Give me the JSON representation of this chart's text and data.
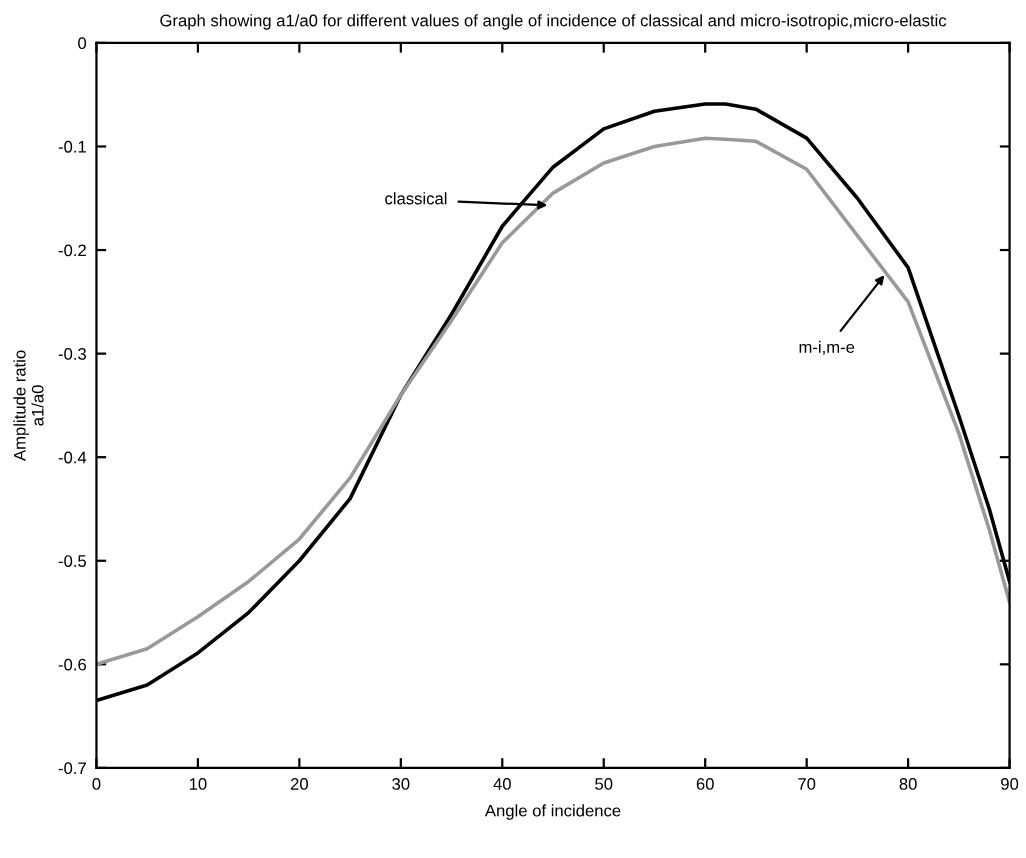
{
  "chart_data": {
    "type": "line",
    "title": "Graph showing a1/a0 for different values of angle of incidence of classical and micro-isotropic,micro-elastic",
    "xlabel": "Angle of incidence",
    "ylabel": "Amplitude ratio\na1/a0",
    "x": [
      0,
      5,
      10,
      15,
      20,
      25,
      30,
      35,
      40,
      45,
      50,
      55,
      60,
      62,
      65,
      70,
      75,
      80,
      85,
      88,
      90
    ],
    "series": [
      {
        "color": "#000000",
        "values": [
          -0.635,
          -0.62,
          -0.589,
          -0.55,
          -0.5,
          -0.44,
          -0.34,
          -0.262,
          -0.177,
          -0.12,
          -0.083,
          -0.066,
          -0.059,
          -0.059,
          -0.064,
          -0.092,
          -0.15,
          -0.217,
          -0.36,
          -0.45,
          -0.52
        ]
      },
      {
        "color": "#999999",
        "values": [
          -0.6,
          -0.585,
          -0.554,
          -0.52,
          -0.479,
          -0.42,
          -0.34,
          -0.268,
          -0.193,
          -0.145,
          -0.116,
          -0.1,
          -0.092,
          -0.093,
          -0.095,
          -0.122,
          -0.186,
          -0.25,
          -0.377,
          -0.47,
          -0.54
        ]
      }
    ],
    "annotations": [
      {
        "text": "classical",
        "x": 45,
        "y": -0.157
      },
      {
        "text": "m-i,m-e",
        "x": 78,
        "y": -0.22
      }
    ],
    "xlim": [
      0,
      90
    ],
    "ylim": [
      -0.7,
      0
    ],
    "xticks": [
      0,
      10,
      20,
      30,
      40,
      50,
      60,
      70,
      80,
      90
    ],
    "yticks": [
      -0.7,
      -0.6,
      -0.5,
      -0.4,
      -0.3,
      -0.2,
      -0.1,
      0
    ],
    "grid": false,
    "legend": false
  }
}
